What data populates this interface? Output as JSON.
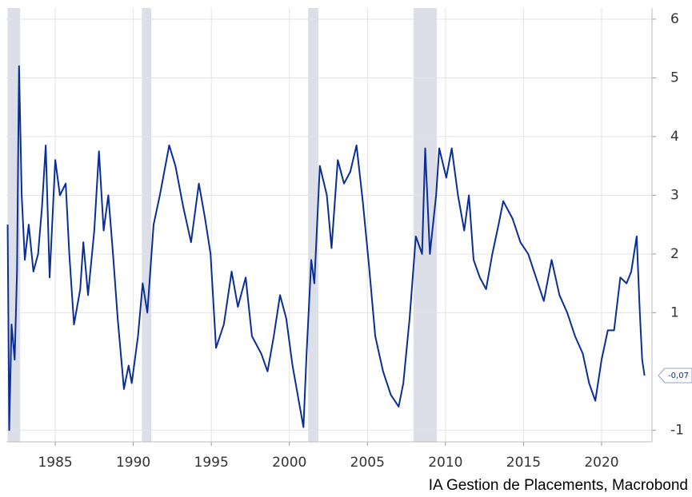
{
  "chart_data": {
    "type": "line",
    "source": "IA Gestion de Placements, Macrobond",
    "end_label": "-0,07",
    "grid": true,
    "xlim": [
      1981.87,
      2023.23
    ],
    "xticks": [
      1985,
      1990,
      1995,
      2000,
      2005,
      2010,
      2015,
      2020
    ],
    "ylim": [
      -1.2,
      6.19
    ],
    "yticks": [
      -1,
      1,
      2,
      3,
      4,
      5,
      6
    ],
    "shaded_periods": [
      [
        1981.95,
        1982.75
      ],
      [
        1990.55,
        1991.15
      ],
      [
        2001.2,
        2001.85
      ],
      [
        2007.95,
        2009.45
      ]
    ],
    "shade_color": "#dcdfe7",
    "series": [
      {
        "color": "#0a2e96",
        "x": [
          1981.95,
          1982.05,
          1982.2,
          1982.4,
          1982.55,
          1982.68,
          1982.85,
          1983.05,
          1983.3,
          1983.6,
          1983.9,
          1984.15,
          1984.39,
          1984.64,
          1985.0,
          1985.3,
          1985.67,
          1985.9,
          1986.2,
          1986.6,
          1986.8,
          1987.1,
          1987.5,
          1987.8,
          1988.1,
          1988.4,
          1988.7,
          1989.0,
          1989.4,
          1989.7,
          1989.9,
          1990.3,
          1990.6,
          1990.9,
          1991.3,
          1991.7,
          1992.3,
          1992.7,
          1993.2,
          1993.7,
          1994.2,
          1994.6,
          1994.95,
          1995.3,
          1995.8,
          1996.3,
          1996.7,
          1997.2,
          1997.6,
          1998.2,
          1998.6,
          1999.0,
          1999.4,
          1999.8,
          2000.2,
          2000.6,
          2000.9,
          2001.1,
          2001.4,
          2001.6,
          2001.95,
          2002.4,
          2002.7,
          2003.1,
          2003.5,
          2003.9,
          2004.3,
          2004.7,
          2005.1,
          2005.5,
          2006.0,
          2006.5,
          2007.0,
          2007.3,
          2007.7,
          2008.1,
          2008.5,
          2008.7,
          2009.0,
          2009.4,
          2009.6,
          2010.05,
          2010.4,
          2010.8,
          2011.2,
          2011.5,
          2011.8,
          2012.2,
          2012.6,
          2013.0,
          2013.4,
          2013.7,
          2014.3,
          2014.8,
          2015.3,
          2015.8,
          2016.3,
          2016.8,
          2017.3,
          2017.8,
          2018.3,
          2018.8,
          2019.2,
          2019.6,
          2020.0,
          2020.4,
          2020.8,
          2021.2,
          2021.6,
          2021.9,
          2022.25,
          2022.45,
          2022.6,
          2022.75
        ],
        "values": [
          2.5,
          -1.0,
          0.8,
          0.2,
          1.7,
          5.2,
          3.0,
          1.9,
          2.5,
          1.7,
          2.0,
          2.8,
          3.85,
          1.6,
          3.6,
          3.0,
          3.2,
          2.0,
          0.8,
          1.4,
          2.2,
          1.3,
          2.4,
          3.75,
          2.4,
          3.0,
          2.0,
          0.9,
          -0.3,
          0.1,
          -0.2,
          0.6,
          1.5,
          1.0,
          2.5,
          3.0,
          3.85,
          3.5,
          2.8,
          2.2,
          3.2,
          2.6,
          2.0,
          0.4,
          0.8,
          1.7,
          1.1,
          1.6,
          0.6,
          0.3,
          0.0,
          0.6,
          1.3,
          0.9,
          0.1,
          -0.5,
          -0.95,
          0.3,
          1.9,
          1.5,
          3.5,
          3.0,
          2.1,
          3.6,
          3.2,
          3.4,
          3.85,
          2.9,
          1.8,
          0.6,
          0.0,
          -0.4,
          -0.6,
          -0.2,
          0.9,
          2.3,
          2.0,
          3.8,
          2.0,
          3.0,
          3.8,
          3.3,
          3.8,
          3.0,
          2.4,
          3.0,
          1.9,
          1.6,
          1.4,
          2.0,
          2.5,
          2.9,
          2.6,
          2.2,
          2.0,
          1.6,
          1.2,
          1.9,
          1.3,
          1.0,
          0.6,
          0.3,
          -0.2,
          -0.5,
          0.2,
          0.7,
          0.7,
          1.6,
          1.5,
          1.7,
          2.3,
          1.0,
          0.2,
          -0.07
        ]
      }
    ]
  }
}
